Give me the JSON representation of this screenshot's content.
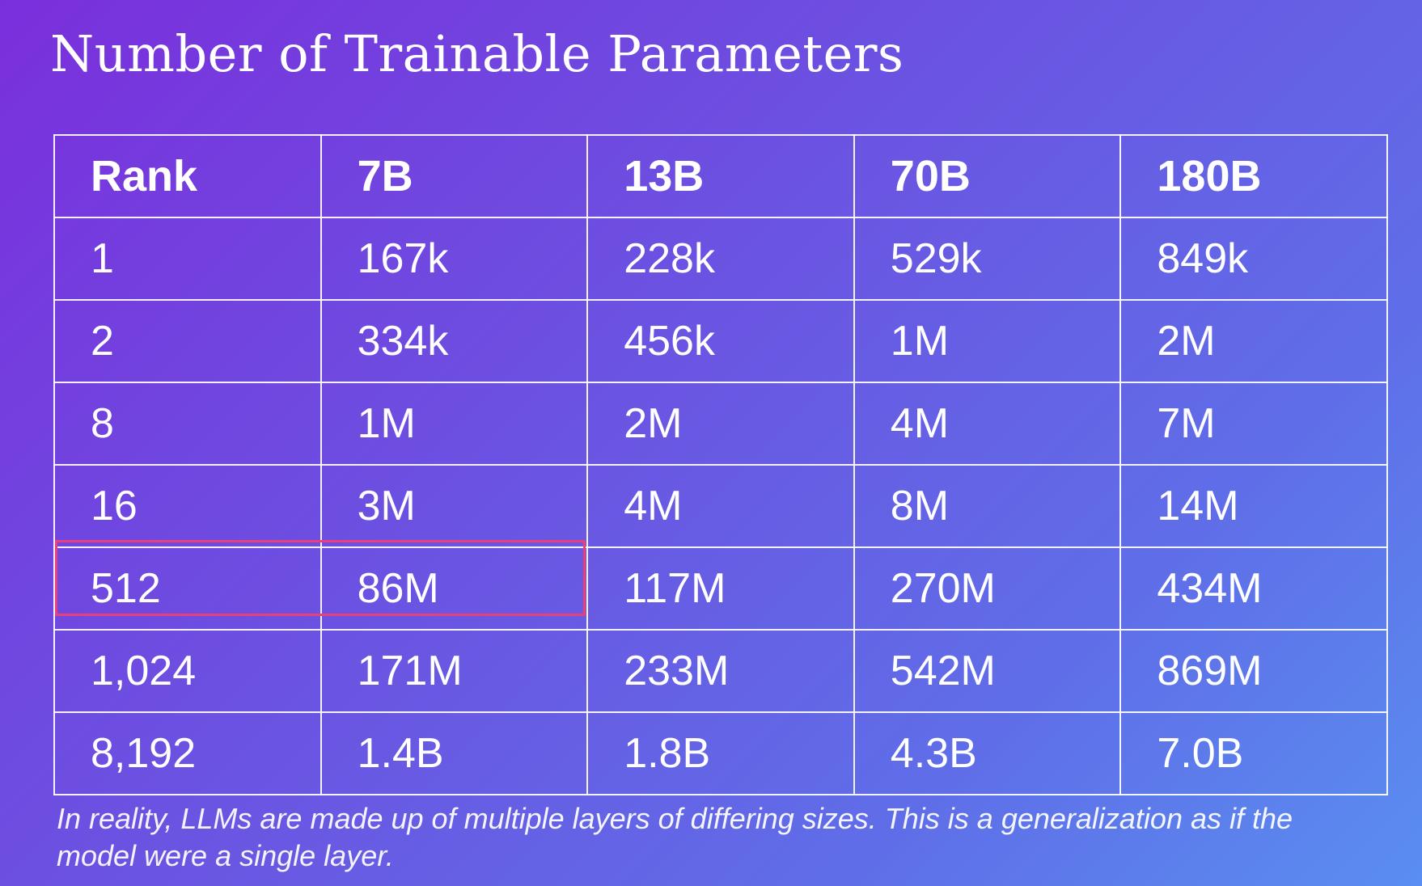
{
  "title": "Number of Trainable Parameters",
  "table": {
    "headers": [
      "Rank",
      "7B",
      "13B",
      "70B",
      "180B"
    ],
    "rows": [
      [
        "1",
        "167k",
        "228k",
        "529k",
        "849k"
      ],
      [
        "2",
        "334k",
        "456k",
        "1M",
        "2M"
      ],
      [
        "8",
        "1M",
        "2M",
        "4M",
        "7M"
      ],
      [
        "16",
        "3M",
        "4M",
        "8M",
        "14M"
      ],
      [
        "512",
        "86M",
        "117M",
        "270M",
        "434M"
      ],
      [
        "1,024",
        "171M",
        "233M",
        "542M",
        "869M"
      ],
      [
        "8,192",
        "1.4B",
        "1.8B",
        "4.3B",
        "7.0B"
      ]
    ],
    "highlight": {
      "row": 4,
      "columns": [
        0,
        1
      ],
      "color": "#e8407a"
    }
  },
  "footnote": "In reality, LLMs are made up of multiple layers of differing sizes. This is a generalization as if the model were a single layer.",
  "colors": {
    "background_start": "#7a2fdc",
    "background_end": "#5a8ef0",
    "text": "#ffffff",
    "highlight": "#e8407a"
  }
}
